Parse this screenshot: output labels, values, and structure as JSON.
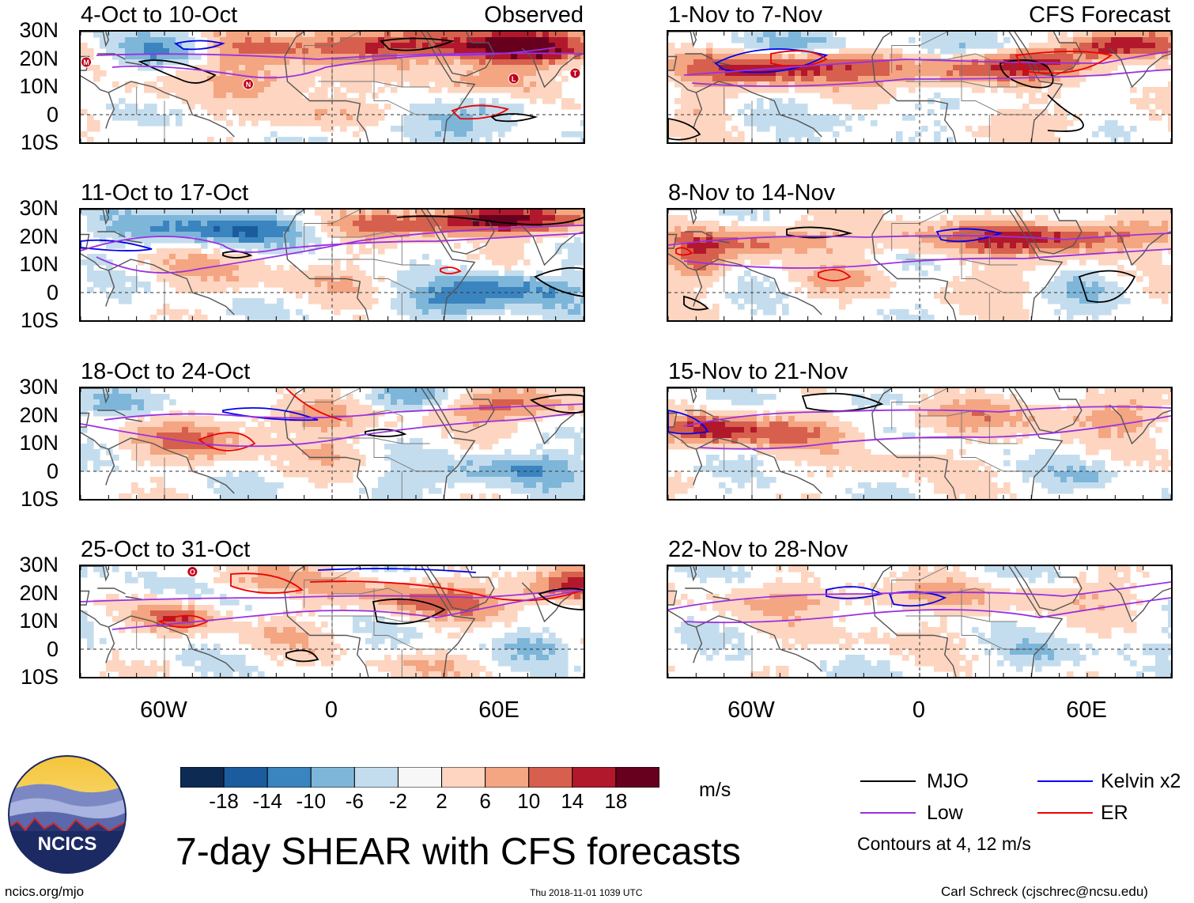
{
  "chart_data": {
    "type": "heatmap",
    "title": "7-day SHEAR with CFS forecasts",
    "columns": [
      {
        "source_label": "Observed",
        "panels": [
          "4-Oct to 10-Oct",
          "11-Oct to 17-Oct",
          "18-Oct to 24-Oct",
          "25-Oct to 31-Oct"
        ]
      },
      {
        "source_label": "CFS Forecast",
        "panels": [
          "1-Nov to 7-Nov",
          "8-Nov to 14-Nov",
          "15-Nov to 21-Nov",
          "22-Nov to 28-Nov"
        ]
      }
    ],
    "lat_ticks": [
      "30N",
      "20N",
      "10N",
      "0",
      "10S"
    ],
    "lon_ticks": [
      "60W",
      "0",
      "60E"
    ],
    "lat_range": [
      -10,
      30
    ],
    "lon_range": [
      -90,
      90
    ],
    "colorbar": {
      "unit": "m/s",
      "ticks": [
        "-18",
        "-14",
        "-10",
        "-6",
        "-2",
        "2",
        "6",
        "10",
        "14",
        "18"
      ],
      "colors": [
        "#0d2a52",
        "#1b5c9e",
        "#3a84c0",
        "#7eb6d9",
        "#c4ddee",
        "#f7f7f7",
        "#fdd5c0",
        "#f4a582",
        "#d6604d",
        "#b2182b",
        "#67001f"
      ]
    },
    "legend": {
      "items": [
        {
          "label": "MJO",
          "color": "#000000"
        },
        {
          "label": "Kelvin x2",
          "color": "#0000ee"
        },
        {
          "label": "Low",
          "color": "#9b30e0"
        },
        {
          "label": "ER",
          "color": "#ee0000"
        }
      ],
      "note": "Contours at 4, 12 m/s"
    },
    "storm_markers": {
      "4-Oct to 10-Oct": [
        "M",
        "N",
        "L",
        "T"
      ],
      "25-Oct to 31-Oct": [
        "O"
      ]
    }
  },
  "logo": {
    "text": "NCICS"
  },
  "footer": {
    "left": "ncics.org/mjo",
    "center": "Thu 2018-11-01 1039 UTC",
    "right": "Carl Schreck (cjschrec@ncsu.edu)"
  }
}
